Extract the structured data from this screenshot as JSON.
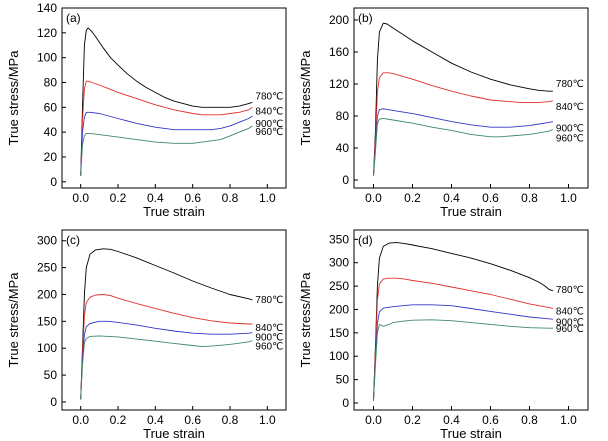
{
  "figure": {
    "chart_data": [
      {
        "type": "line",
        "panel": "(a)",
        "xlabel": "True strain",
        "ylabel": "True stress/MPa",
        "xlim": [
          -0.1,
          1.1
        ],
        "ylim": [
          -5,
          140
        ],
        "xticks": [
          "0.0",
          "0.2",
          "0.4",
          "0.6",
          "0.8",
          "1.0"
        ],
        "yticks": [
          "0",
          "20",
          "40",
          "60",
          "80",
          "100",
          "120",
          "140"
        ],
        "series": [
          {
            "name": "780℃",
            "color": "#000000",
            "x": [
              0,
              0.01,
              0.02,
              0.03,
              0.04,
              0.06,
              0.08,
              0.12,
              0.16,
              0.2,
              0.25,
              0.3,
              0.35,
              0.4,
              0.45,
              0.5,
              0.55,
              0.6,
              0.65,
              0.7,
              0.75,
              0.8,
              0.85,
              0.9,
              0.92
            ],
            "y": [
              5,
              60,
              110,
              122,
              124,
              121,
              117,
              108,
              100,
              94,
              87,
              81,
              76,
              72,
              68,
              65,
              63,
              61,
              60,
              60,
              60,
              60,
              61,
              63,
              64
            ]
          },
          {
            "name": "840℃",
            "color": "#e0302c",
            "x": [
              0,
              0.01,
              0.02,
              0.03,
              0.04,
              0.06,
              0.1,
              0.15,
              0.2,
              0.3,
              0.4,
              0.5,
              0.6,
              0.65,
              0.7,
              0.75,
              0.8,
              0.85,
              0.9,
              0.92
            ],
            "y": [
              5,
              50,
              75,
              81,
              81,
              80,
              78,
              75,
              72,
              67,
              62,
              58,
              55,
              54,
              54,
              54,
              55,
              56,
              58,
              60
            ]
          },
          {
            "name": "900℃",
            "color": "#3535c8",
            "x": [
              0,
              0.01,
              0.02,
              0.03,
              0.05,
              0.1,
              0.15,
              0.2,
              0.3,
              0.4,
              0.5,
              0.6,
              0.65,
              0.7,
              0.75,
              0.8,
              0.85,
              0.9,
              0.92
            ],
            "y": [
              5,
              40,
              52,
              56,
              56,
              55,
              53,
              51,
              47,
              44,
              42,
              42,
              42,
              42,
              43,
              45,
              48,
              51,
              53
            ]
          },
          {
            "name": "960℃",
            "color": "#3e8a63",
            "x": [
              0,
              0.01,
              0.02,
              0.03,
              0.05,
              0.1,
              0.2,
              0.3,
              0.4,
              0.5,
              0.6,
              0.65,
              0.7,
              0.75,
              0.8,
              0.85,
              0.9,
              0.92
            ],
            "y": [
              5,
              30,
              37,
              39,
              39,
              38,
              36,
              34,
              32,
              31,
              31,
              32,
              33,
              34,
              37,
              40,
              43,
              45
            ]
          }
        ]
      },
      {
        "type": "line",
        "panel": "(b)",
        "xlabel": "True strain",
        "ylabel": "True stress/MPa",
        "xlim": [
          -0.1,
          1.1
        ],
        "ylim": [
          -10,
          215
        ],
        "xticks": [
          "0.0",
          "0.2",
          "0.4",
          "0.6",
          "0.8",
          "1.0"
        ],
        "yticks": [
          "0",
          "40",
          "80",
          "120",
          "160",
          "200"
        ],
        "series": [
          {
            "name": "780℃",
            "color": "#000000",
            "x": [
              0,
              0.01,
              0.02,
              0.03,
              0.05,
              0.07,
              0.1,
              0.15,
              0.2,
              0.3,
              0.4,
              0.5,
              0.6,
              0.7,
              0.8,
              0.85,
              0.9,
              0.92
            ],
            "y": [
              5,
              60,
              150,
              185,
              196,
              195,
              190,
              182,
              174,
              160,
              146,
              135,
              126,
              119,
              114,
              112,
              111,
              111
            ]
          },
          {
            "name": "840℃",
            "color": "#e0302c",
            "x": [
              0,
              0.01,
              0.02,
              0.03,
              0.05,
              0.08,
              0.1,
              0.2,
              0.3,
              0.4,
              0.5,
              0.6,
              0.7,
              0.75,
              0.8,
              0.85,
              0.9,
              0.92
            ],
            "y": [
              5,
              50,
              110,
              128,
              134,
              134,
              133,
              126,
              118,
              111,
              105,
              100,
              98,
              97,
              97,
              97,
              98,
              99
            ]
          },
          {
            "name": "900℃",
            "color": "#3535c8",
            "x": [
              0,
              0.01,
              0.02,
              0.03,
              0.05,
              0.1,
              0.2,
              0.3,
              0.4,
              0.5,
              0.6,
              0.65,
              0.7,
              0.8,
              0.85,
              0.9,
              0.92
            ],
            "y": [
              5,
              40,
              80,
              88,
              89,
              87,
              83,
              78,
              73,
              69,
              66,
              66,
              66,
              68,
              70,
              72,
              73
            ]
          },
          {
            "name": "960℃",
            "color": "#3e8a63",
            "x": [
              0,
              0.01,
              0.02,
              0.03,
              0.05,
              0.1,
              0.2,
              0.3,
              0.4,
              0.5,
              0.6,
              0.65,
              0.7,
              0.8,
              0.85,
              0.9,
              0.92
            ],
            "y": [
              5,
              35,
              70,
              76,
              77,
              75,
              71,
              66,
              62,
              57,
              54,
              54,
              55,
              57,
              59,
              61,
              63
            ]
          }
        ]
      },
      {
        "type": "line",
        "panel": "(c)",
        "xlabel": "True strain",
        "ylabel": "True stress/MPa",
        "xlim": [
          -0.1,
          1.1
        ],
        "ylim": [
          -15,
          320
        ],
        "xticks": [
          "0.0",
          "0.2",
          "0.4",
          "0.6",
          "0.8",
          "1.0"
        ],
        "yticks": [
          "0",
          "50",
          "100",
          "150",
          "200",
          "250",
          "300"
        ],
        "series": [
          {
            "name": "780℃",
            "color": "#000000",
            "x": [
              0,
              0.01,
              0.02,
              0.03,
              0.05,
              0.08,
              0.12,
              0.16,
              0.2,
              0.3,
              0.4,
              0.5,
              0.6,
              0.7,
              0.8,
              0.9,
              0.92
            ],
            "y": [
              5,
              100,
              200,
              250,
              275,
              283,
              285,
              284,
              280,
              268,
              254,
              240,
              225,
              212,
              200,
              192,
              190
            ]
          },
          {
            "name": "840℃",
            "color": "#e0302c",
            "x": [
              0,
              0.01,
              0.02,
              0.03,
              0.05,
              0.08,
              0.12,
              0.16,
              0.2,
              0.3,
              0.4,
              0.5,
              0.6,
              0.7,
              0.8,
              0.9,
              0.92
            ],
            "y": [
              5,
              90,
              160,
              185,
              195,
              199,
              200,
              198,
              193,
              183,
              174,
              165,
              157,
              151,
              147,
              145,
              145
            ]
          },
          {
            "name": "900℃",
            "color": "#3535c8",
            "x": [
              0,
              0.01,
              0.02,
              0.03,
              0.05,
              0.1,
              0.15,
              0.2,
              0.3,
              0.4,
              0.5,
              0.6,
              0.7,
              0.8,
              0.9,
              0.92
            ],
            "y": [
              5,
              80,
              125,
              140,
              146,
              150,
              150,
              148,
              143,
              137,
              132,
              128,
              126,
              126,
              128,
              129
            ]
          },
          {
            "name": "960℃",
            "color": "#3e8a63",
            "x": [
              0,
              0.01,
              0.02,
              0.03,
              0.05,
              0.1,
              0.2,
              0.3,
              0.4,
              0.5,
              0.6,
              0.65,
              0.7,
              0.8,
              0.9,
              0.92
            ],
            "y": [
              5,
              70,
              110,
              118,
              122,
              123,
              121,
              117,
              113,
              109,
              105,
              103,
              104,
              107,
              112,
              114
            ]
          }
        ]
      },
      {
        "type": "line",
        "panel": "(d)",
        "xlabel": "True strain",
        "ylabel": "True stress/MPa",
        "xlim": [
          -0.1,
          1.1
        ],
        "ylim": [
          -15,
          370
        ],
        "xticks": [
          "0.0",
          "0.2",
          "0.4",
          "0.6",
          "0.8",
          "1.0"
        ],
        "yticks": [
          "0",
          "50",
          "100",
          "150",
          "200",
          "250",
          "300",
          "350"
        ],
        "series": [
          {
            "name": "780℃",
            "color": "#000000",
            "x": [
              0,
              0.01,
              0.02,
              0.03,
              0.05,
              0.08,
              0.12,
              0.16,
              0.2,
              0.3,
              0.4,
              0.5,
              0.6,
              0.7,
              0.8,
              0.85,
              0.88,
              0.9,
              0.92
            ],
            "y": [
              5,
              120,
              250,
              310,
              335,
              342,
              343,
              341,
              338,
              330,
              320,
              310,
              298,
              284,
              268,
              258,
              250,
              243,
              240
            ]
          },
          {
            "name": "840℃",
            "color": "#e0302c",
            "x": [
              0,
              0.01,
              0.02,
              0.03,
              0.05,
              0.08,
              0.12,
              0.16,
              0.2,
              0.3,
              0.4,
              0.5,
              0.6,
              0.7,
              0.8,
              0.9,
              0.92
            ],
            "y": [
              5,
              110,
              220,
              255,
              265,
              267,
              267,
              265,
              262,
              256,
              248,
              240,
              232,
              222,
              212,
              204,
              202
            ]
          },
          {
            "name": "900℃",
            "color": "#3535c8",
            "x": [
              0,
              0.01,
              0.02,
              0.03,
              0.05,
              0.1,
              0.15,
              0.2,
              0.25,
              0.3,
              0.4,
              0.5,
              0.6,
              0.7,
              0.8,
              0.9,
              0.92
            ],
            "y": [
              5,
              90,
              170,
              195,
              203,
              206,
              208,
              210,
              210,
              210,
              208,
              202,
              196,
              190,
              184,
              180,
              179
            ]
          },
          {
            "name": "960℃",
            "color": "#3e8a63",
            "x": [
              0,
              0.01,
              0.02,
              0.03,
              0.05,
              0.08,
              0.1,
              0.15,
              0.2,
              0.3,
              0.4,
              0.5,
              0.6,
              0.7,
              0.8,
              0.9,
              0.92
            ],
            "y": [
              5,
              80,
              150,
              168,
              164,
              168,
              172,
              175,
              177,
              178,
              176,
              172,
              168,
              164,
              161,
              160,
              160
            ]
          }
        ]
      }
    ]
  }
}
